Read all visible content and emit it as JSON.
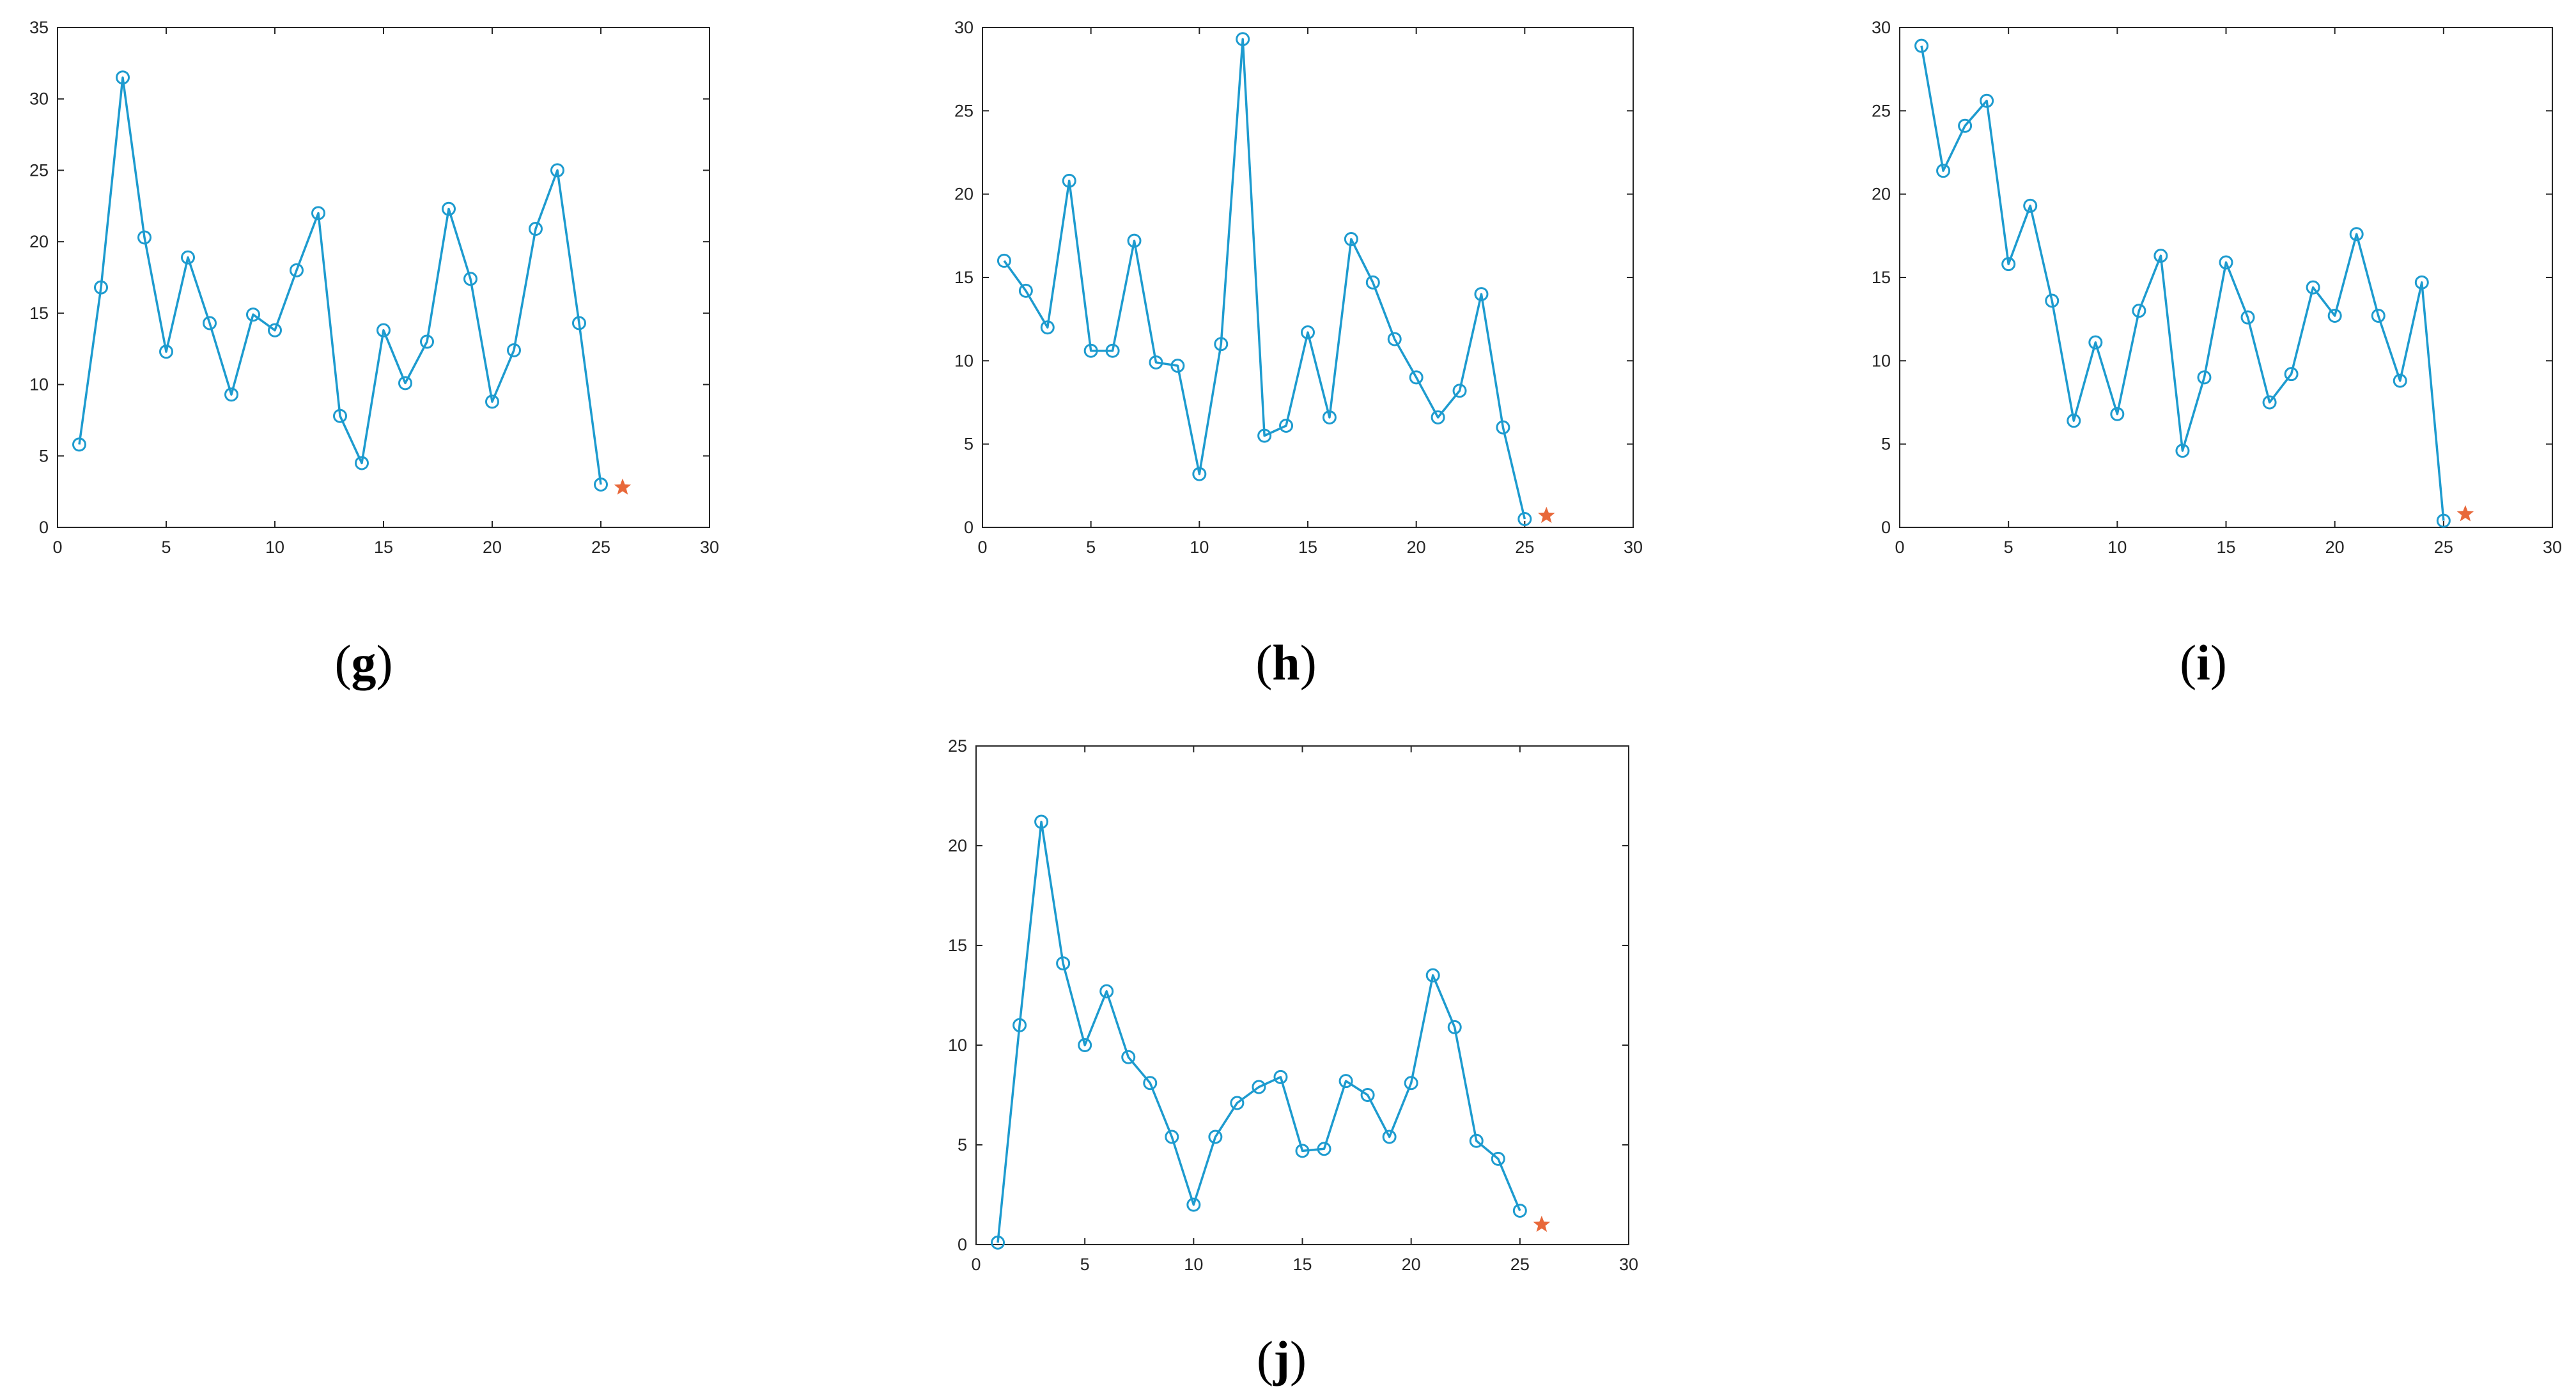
{
  "figure": {
    "panels": [
      {
        "label_open": "(",
        "label_letter": "g",
        "label_close": ")"
      },
      {
        "label_open": "(",
        "label_letter": "h",
        "label_close": ")"
      },
      {
        "label_open": "(",
        "label_letter": "i",
        "label_close": ")"
      },
      {
        "label_open": "(",
        "label_letter": "j",
        "label_close": ")"
      }
    ]
  },
  "chart_data": [
    {
      "type": "line",
      "panel": "g",
      "title": "",
      "xlabel": "",
      "ylabel": "",
      "xlim": [
        0,
        30
      ],
      "ylim": [
        0,
        35
      ],
      "xticks": [
        0,
        5,
        10,
        15,
        20,
        25,
        30
      ],
      "yticks": [
        0,
        5,
        10,
        15,
        20,
        25,
        30,
        35
      ],
      "grid": false,
      "line_color": "#1d9bcf",
      "marker": "circle",
      "series": [
        {
          "x": [
            1,
            2,
            3,
            4,
            5,
            6,
            7,
            8,
            9,
            10,
            11,
            12,
            13,
            14,
            15,
            16,
            17,
            18,
            19,
            20,
            21,
            22,
            23,
            24,
            25
          ],
          "values": [
            5.8,
            16.8,
            31.5,
            20.3,
            12.3,
            18.9,
            14.3,
            9.3,
            14.9,
            13.8,
            18.0,
            22.0,
            7.8,
            4.5,
            13.8,
            10.1,
            13.0,
            22.3,
            17.4,
            8.8,
            12.4,
            20.9,
            25.0,
            14.3,
            3.0
          ]
        }
      ],
      "star": {
        "x": 26,
        "y": 2.8,
        "color": "#e8683a"
      }
    },
    {
      "type": "line",
      "panel": "h",
      "title": "",
      "xlabel": "",
      "ylabel": "",
      "xlim": [
        0,
        30
      ],
      "ylim": [
        0,
        30
      ],
      "xticks": [
        0,
        5,
        10,
        15,
        20,
        25,
        30
      ],
      "yticks": [
        0,
        5,
        10,
        15,
        20,
        25,
        30
      ],
      "grid": false,
      "line_color": "#1d9bcf",
      "marker": "circle",
      "series": [
        {
          "x": [
            1,
            2,
            3,
            4,
            5,
            6,
            7,
            8,
            9,
            10,
            11,
            12,
            13,
            14,
            15,
            16,
            17,
            18,
            19,
            20,
            21,
            22,
            23,
            24,
            25
          ],
          "values": [
            16.0,
            14.2,
            12.0,
            20.8,
            10.6,
            10.6,
            17.2,
            9.9,
            9.7,
            3.2,
            11.0,
            29.3,
            5.5,
            6.1,
            11.7,
            6.6,
            17.3,
            14.7,
            11.3,
            9.0,
            6.6,
            8.2,
            14.0,
            6.0,
            0.5
          ]
        }
      ],
      "star": {
        "x": 26,
        "y": 0.7,
        "color": "#e8683a"
      }
    },
    {
      "type": "line",
      "panel": "i",
      "title": "",
      "xlabel": "",
      "ylabel": "",
      "xlim": [
        0,
        30
      ],
      "ylim": [
        0,
        30
      ],
      "xticks": [
        0,
        5,
        10,
        15,
        20,
        25,
        30
      ],
      "yticks": [
        0,
        5,
        10,
        15,
        20,
        25,
        30
      ],
      "grid": false,
      "line_color": "#1d9bcf",
      "marker": "circle",
      "series": [
        {
          "x": [
            1,
            2,
            3,
            4,
            5,
            6,
            7,
            8,
            9,
            10,
            11,
            12,
            13,
            14,
            15,
            16,
            17,
            18,
            19,
            20,
            21,
            22,
            23,
            24,
            25
          ],
          "values": [
            28.9,
            21.4,
            24.1,
            25.6,
            15.8,
            19.3,
            13.6,
            6.4,
            11.1,
            6.8,
            13.0,
            16.3,
            4.6,
            9.0,
            15.9,
            12.6,
            7.5,
            9.2,
            14.4,
            12.7,
            17.6,
            12.7,
            8.8,
            14.7,
            0.4
          ]
        }
      ],
      "star": {
        "x": 26,
        "y": 0.8,
        "color": "#e8683a"
      }
    },
    {
      "type": "line",
      "panel": "j",
      "title": "",
      "xlabel": "",
      "ylabel": "",
      "xlim": [
        0,
        30
      ],
      "ylim": [
        0,
        25
      ],
      "xticks": [
        0,
        5,
        10,
        15,
        20,
        25,
        30
      ],
      "yticks": [
        0,
        5,
        10,
        15,
        20,
        25
      ],
      "grid": false,
      "line_color": "#1d9bcf",
      "marker": "circle",
      "series": [
        {
          "x": [
            1,
            2,
            3,
            4,
            5,
            6,
            7,
            8,
            9,
            10,
            11,
            12,
            13,
            14,
            15,
            16,
            17,
            18,
            19,
            20,
            21,
            22,
            23,
            24,
            25
          ],
          "values": [
            0.1,
            11.0,
            21.2,
            14.1,
            10.0,
            12.7,
            9.4,
            8.1,
            5.4,
            2.0,
            5.4,
            7.1,
            7.9,
            8.4,
            4.7,
            4.8,
            8.2,
            7.5,
            5.4,
            8.1,
            13.5,
            10.9,
            5.2,
            4.3,
            1.7
          ]
        }
      ],
      "star": {
        "x": 26,
        "y": 1.0,
        "color": "#e8683a"
      }
    }
  ]
}
